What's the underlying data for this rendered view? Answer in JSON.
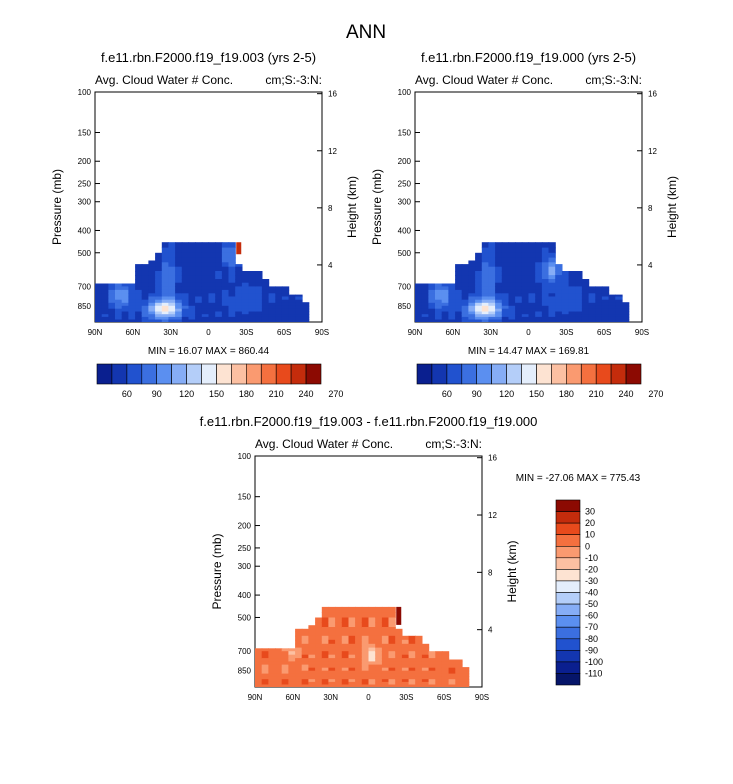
{
  "page_title": "ANN",
  "chart_data": [
    {
      "type": "heatmap",
      "title": "f.e11.rbn.F2000.f19_f19.003 (yrs 2-5)",
      "left_string": "Avg. Cloud Water # Conc.",
      "right_string": "cm;S:-3:N:",
      "ylabel": "Pressure (mb)",
      "y2label": "Height (km)",
      "x_ticks": [
        "90N",
        "60N",
        "30N",
        "0",
        "30S",
        "60S",
        "90S"
      ],
      "p_ticks": [
        100,
        150,
        200,
        250,
        300,
        400,
        500,
        700,
        850
      ],
      "km_ticks": [
        4,
        8,
        12,
        16
      ],
      "min_max": "MIN = 16.07  MAX = 860.44",
      "colorbar_labels": [
        "60",
        "90",
        "120",
        "150",
        "180",
        "210",
        "240",
        "270"
      ],
      "colors": [
        "#0a1f8f",
        "#1336b0",
        "#2152cf",
        "#3b6fe0",
        "#5b8ff0",
        "#86adf6",
        "#b4cef9",
        "#e4eefc",
        "#fde3d2",
        "#fcc0a2",
        "#fa9a70",
        "#f4703f",
        "#e84a1c",
        "#c42c0c",
        "#8c0a02"
      ]
    },
    {
      "type": "heatmap",
      "title": "f.e11.rbn.F2000.f19_f19.000 (yrs 2-5)",
      "left_string": "Avg. Cloud Water # Conc.",
      "right_string": "cm;S:-3:N:",
      "ylabel": "Pressure (mb)",
      "y2label": "Height (km)",
      "x_ticks": [
        "90N",
        "60N",
        "30N",
        "0",
        "30S",
        "60S",
        "90S"
      ],
      "p_ticks": [
        100,
        150,
        200,
        250,
        300,
        400,
        500,
        700,
        850
      ],
      "km_ticks": [
        4,
        8,
        12,
        16
      ],
      "min_max": "MIN = 14.47  MAX = 169.81",
      "colorbar_labels": [
        "60",
        "90",
        "120",
        "150",
        "180",
        "210",
        "240",
        "270"
      ],
      "colors": [
        "#0a1f8f",
        "#1336b0",
        "#2152cf",
        "#3b6fe0",
        "#5b8ff0",
        "#86adf6",
        "#b4cef9",
        "#e4eefc",
        "#fde3d2",
        "#fcc0a2",
        "#fa9a70",
        "#f4703f",
        "#e84a1c",
        "#c42c0c",
        "#8c0a02"
      ]
    },
    {
      "type": "heatmap",
      "title": "f.e11.rbn.F2000.f19_f19.003 - f.e11.rbn.F2000.f19_f19.000",
      "left_string": "Avg. Cloud Water # Conc.",
      "right_string": "cm;S:-3:N:",
      "ylabel": "Pressure (mb)",
      "y2label": "Height (km)",
      "x_ticks": [
        "90N",
        "60N",
        "30N",
        "0",
        "30S",
        "60S",
        "90S"
      ],
      "p_ticks": [
        100,
        150,
        200,
        250,
        300,
        400,
        500,
        700,
        850
      ],
      "km_ticks": [
        4,
        8,
        12,
        16
      ],
      "min_max": "MIN = -27.06  MAX = 775.43",
      "colorbar_labels": [
        "30",
        "20",
        "10",
        "0",
        "-10",
        "-20",
        "-30",
        "-40",
        "-50",
        "-60",
        "-70",
        "-80",
        "-90",
        "-100",
        "-110"
      ],
      "colors": [
        "#8c0a02",
        "#c42c0c",
        "#e84a1c",
        "#f4703f",
        "#fa9a70",
        "#fcc0a2",
        "#fde3d2",
        "#e4eefc",
        "#b4cef9",
        "#86adf6",
        "#5b8ff0",
        "#3b6fe0",
        "#2152cf",
        "#1336b0",
        "#0a1f8f",
        "#061569"
      ]
    }
  ]
}
